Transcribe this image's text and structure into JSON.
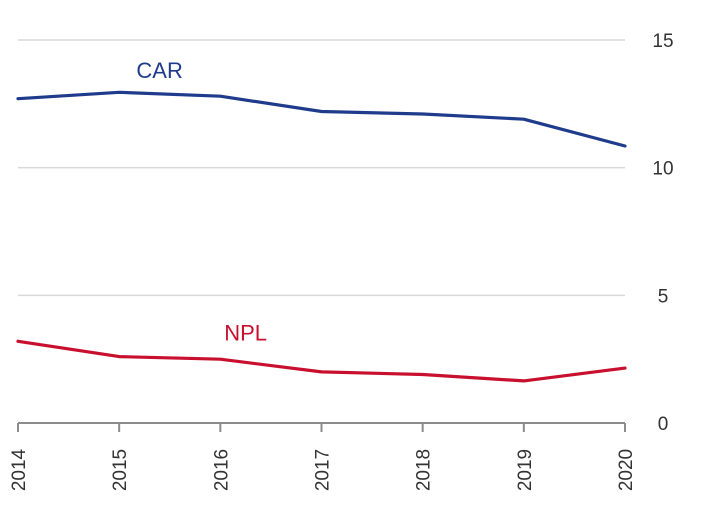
{
  "chart_data": {
    "type": "line",
    "title": "",
    "xlabel": "",
    "ylabel": "",
    "x": [
      "2014",
      "2015",
      "2016",
      "2017",
      "2018",
      "2019",
      "2020"
    ],
    "ylim": [
      0,
      15
    ],
    "yticks": [
      "0",
      "5",
      "10",
      "15"
    ],
    "yaxis_position": "right",
    "grid": true,
    "series": [
      {
        "name": "CAR",
        "color": "#1f3c8c",
        "values": [
          12.7,
          12.95,
          12.8,
          12.2,
          12.1,
          11.9,
          10.85
        ]
      },
      {
        "name": "NPL",
        "color": "#c8102e",
        "values": [
          3.2,
          2.6,
          2.5,
          2.0,
          1.9,
          1.65,
          2.15
        ]
      }
    ]
  }
}
